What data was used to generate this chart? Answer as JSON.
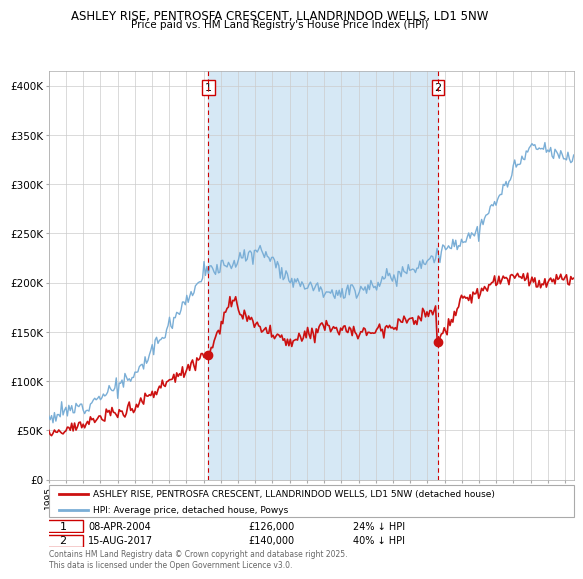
{
  "title1": "ASHLEY RISE, PENTROSFA CRESCENT, LLANDRINDOD WELLS, LD1 5NW",
  "title2": "Price paid vs. HM Land Registry's House Price Index (HPI)",
  "ylabel_ticks": [
    "£0",
    "£50K",
    "£100K",
    "£150K",
    "£200K",
    "£250K",
    "£300K",
    "£350K",
    "£400K"
  ],
  "ytick_values": [
    0,
    50000,
    100000,
    150000,
    200000,
    250000,
    300000,
    350000,
    400000
  ],
  "ylim": [
    0,
    415000
  ],
  "xlim_start": 1995.0,
  "xlim_end": 2025.5,
  "hpi_color": "#7aaed6",
  "hpi_fill_color": "#d6e8f5",
  "price_color": "#cc1111",
  "vline_color": "#cc0000",
  "marker1_x": 2004.27,
  "marker1_y": 126000,
  "marker2_x": 2017.62,
  "marker2_y": 140000,
  "legend_label1": "ASHLEY RISE, PENTROSFA CRESCENT, LLANDRINDOD WELLS, LD1 5NW (detached house)",
  "legend_label2": "HPI: Average price, detached house, Powys",
  "note1_num": "1",
  "note1_date": "08-APR-2004",
  "note1_price": "£126,000",
  "note1_hpi": "24% ↓ HPI",
  "note2_num": "2",
  "note2_date": "15-AUG-2017",
  "note2_price": "£140,000",
  "note2_hpi": "40% ↓ HPI",
  "footer": "Contains HM Land Registry data © Crown copyright and database right 2025.\nThis data is licensed under the Open Government Licence v3.0.",
  "background_color": "#ffffff",
  "grid_color": "#cccccc"
}
